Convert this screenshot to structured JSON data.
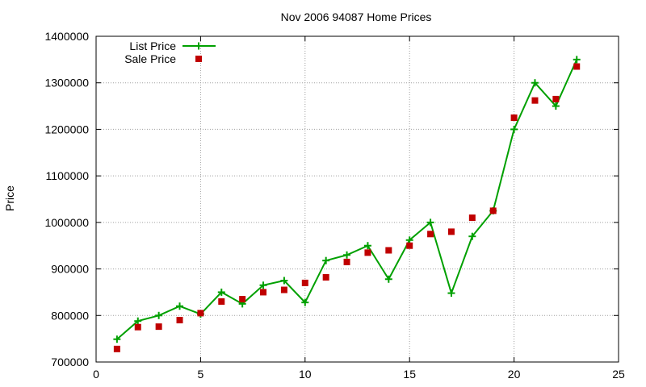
{
  "chart_data": {
    "type": "line",
    "title": "Nov 2006 94087 Home Prices",
    "xlabel": "",
    "ylabel": "Price",
    "xlim": [
      0,
      25
    ],
    "ylim": [
      700000,
      1400000
    ],
    "x_ticks": [
      0,
      5,
      10,
      15,
      20,
      25
    ],
    "y_ticks": [
      700000,
      800000,
      900000,
      1000000,
      1100000,
      1200000,
      1300000,
      1400000
    ],
    "grid": true,
    "legend_position": "top-left",
    "series": [
      {
        "name": "List Price",
        "style": "linespoints",
        "marker": "plus",
        "color": "#00a000",
        "x": [
          1,
          2,
          3,
          4,
          5,
          6,
          7,
          8,
          9,
          10,
          11,
          12,
          13,
          14,
          15,
          16,
          17,
          18,
          19,
          20,
          21,
          22,
          23
        ],
        "values": [
          749000,
          788000,
          800000,
          820000,
          803000,
          850000,
          825000,
          865000,
          875000,
          828000,
          918000,
          930000,
          950000,
          878000,
          962000,
          1000000,
          848000,
          970000,
          1025000,
          1200000,
          1300000,
          1250000,
          1350000
        ]
      },
      {
        "name": "Sale Price",
        "style": "points",
        "marker": "square",
        "color": "#c00000",
        "x": [
          1,
          2,
          3,
          4,
          5,
          6,
          7,
          8,
          9,
          10,
          11,
          12,
          13,
          14,
          15,
          16,
          17,
          18,
          19,
          20,
          21,
          22,
          23
        ],
        "values": [
          728000,
          775000,
          776000,
          790000,
          805000,
          830000,
          835000,
          850000,
          855000,
          870000,
          882000,
          915000,
          935000,
          940000,
          950000,
          975000,
          980000,
          1010000,
          1025000,
          1225000,
          1262000,
          1265000,
          1335000
        ]
      }
    ]
  }
}
